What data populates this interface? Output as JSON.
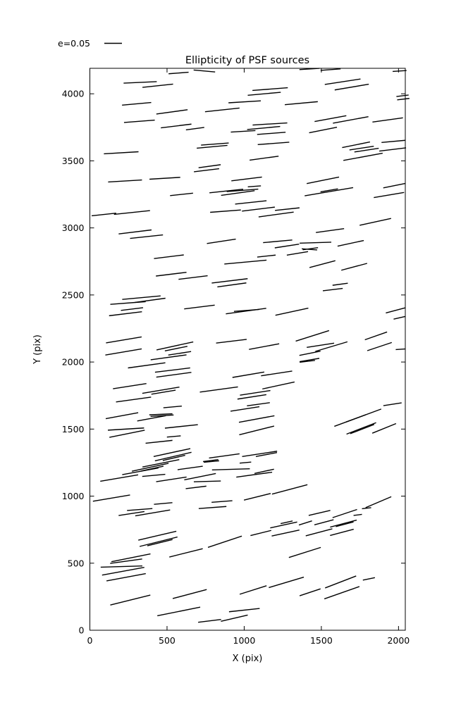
{
  "title": "Ellipticity of PSF sources",
  "legend": {
    "label": "e=0.05"
  },
  "axes": {
    "xlabel": "X (pix)",
    "ylabel": "Y (pix)",
    "xticks": [
      0,
      500,
      1000,
      1500,
      2000
    ],
    "yticks": [
      0,
      500,
      1000,
      1500,
      2000,
      2500,
      3000,
      3500,
      4000
    ],
    "xlim": [
      0,
      2044
    ],
    "ylim": [
      0,
      4190
    ]
  },
  "colors": {
    "line": "#000000",
    "background": "#ffffff",
    "axis": "#000000"
  },
  "chart_data": {
    "type": "line_segments",
    "title": "Ellipticity of PSF sources",
    "xlabel": "X (pix)",
    "ylabel": "Y (pix)",
    "xlim": [
      0,
      2044
    ],
    "ylim": [
      0,
      4190
    ],
    "grid": false,
    "legend_position": "upper-left-outside",
    "legend_entry": "e=0.05",
    "segments_format": "[x_center, y_center, length_pix, angle_deg_ccw]",
    "segments": [
      [
        575,
        4155,
        130,
        5
      ],
      [
        326,
        4085,
        215,
        3
      ],
      [
        440,
        4060,
        200,
        7
      ],
      [
        303,
        3925,
        190,
        6
      ],
      [
        532,
        3865,
        205,
        9
      ],
      [
        321,
        3795,
        200,
        5
      ],
      [
        559,
        3760,
        200,
        8
      ],
      [
        203,
        3560,
        225,
        4
      ],
      [
        742,
        4170,
        140,
        -6
      ],
      [
        1168,
        4035,
        230,
        5
      ],
      [
        1130,
        4000,
        215,
        6
      ],
      [
        1003,
        3940,
        210,
        4
      ],
      [
        1370,
        3930,
        215,
        6
      ],
      [
        858,
        3880,
        225,
        7
      ],
      [
        1167,
        3775,
        225,
        4
      ],
      [
        1126,
        3745,
        215,
        6
      ],
      [
        1176,
        3705,
        185,
        5
      ],
      [
        993,
        3720,
        160,
        4
      ],
      [
        682,
        3740,
        120,
        9
      ],
      [
        810,
        3625,
        180,
        5
      ],
      [
        792,
        3605,
        200,
        6
      ],
      [
        1190,
        3630,
        205,
        5
      ],
      [
        1129,
        3520,
        190,
        9
      ],
      [
        776,
        3460,
        145,
        9
      ],
      [
        756,
        3430,
        165,
        8
      ],
      [
        1016,
        3365,
        200,
        8
      ],
      [
        1423,
        4185,
        130,
        4
      ],
      [
        1560,
        4180,
        130,
        5
      ],
      [
        2007,
        4170,
        90,
        4
      ],
      [
        1638,
        4090,
        235,
        10
      ],
      [
        1697,
        4050,
        225,
        11
      ],
      [
        2026,
        3985,
        80,
        8
      ],
      [
        2031,
        3960,
        80,
        8
      ],
      [
        1559,
        3815,
        210,
        12
      ],
      [
        1690,
        3805,
        235,
        12
      ],
      [
        1930,
        3805,
        200,
        9
      ],
      [
        1511,
        3730,
        185,
        13
      ],
      [
        1967,
        3645,
        155,
        6
      ],
      [
        1725,
        3620,
        185,
        13
      ],
      [
        1761,
        3595,
        160,
        10
      ],
      [
        1793,
        3580,
        160,
        10
      ],
      [
        1770,
        3530,
        260,
        12
      ],
      [
        1962,
        3585,
        175,
        8
      ],
      [
        228,
        3350,
        220,
        4
      ],
      [
        486,
        3370,
        200,
        4
      ],
      [
        594,
        3250,
        150,
        7
      ],
      [
        91,
        3100,
        160,
        7
      ],
      [
        273,
        3115,
        235,
        7
      ],
      [
        293,
        2970,
        215,
        8
      ],
      [
        367,
        2935,
        215,
        7
      ],
      [
        512,
        2785,
        195,
        8
      ],
      [
        527,
        2655,
        200,
        8
      ],
      [
        669,
        2630,
        190,
        8
      ],
      [
        884,
        3275,
        220,
        7
      ],
      [
        959,
        3260,
        220,
        9
      ],
      [
        989,
        3280,
        205,
        5
      ],
      [
        1066,
        3310,
        85,
        5
      ],
      [
        1043,
        3190,
        205,
        7
      ],
      [
        879,
        3125,
        200,
        5
      ],
      [
        1092,
        3140,
        215,
        8
      ],
      [
        1207,
        3100,
        230,
        9
      ],
      [
        1279,
        3140,
        160,
        7
      ],
      [
        852,
        2900,
        190,
        10
      ],
      [
        1217,
        2900,
        190,
        6
      ],
      [
        1277,
        2865,
        160,
        10
      ],
      [
        1144,
        2790,
        120,
        7
      ],
      [
        1345,
        2810,
        140,
        11
      ],
      [
        1008,
        2745,
        275,
        6
      ],
      [
        906,
        2605,
        235,
        8
      ],
      [
        920,
        2575,
        190,
        9
      ],
      [
        1510,
        3355,
        215,
        13
      ],
      [
        1549,
        3270,
        320,
        11
      ],
      [
        1551,
        3280,
        115,
        11
      ],
      [
        1972,
        3315,
        145,
        13
      ],
      [
        1938,
        3245,
        200,
        11
      ],
      [
        1850,
        3045,
        210,
        14
      ],
      [
        1556,
        2980,
        185,
        9
      ],
      [
        1462,
        2890,
        205,
        2
      ],
      [
        1429,
        2845,
        100,
        9
      ],
      [
        1423,
        2840,
        100,
        -5
      ],
      [
        1690,
        2885,
        175,
        14
      ],
      [
        1507,
        2730,
        175,
        17
      ],
      [
        1713,
        2710,
        175,
        17
      ],
      [
        1622,
        2580,
        100,
        9
      ],
      [
        1574,
        2540,
        130,
        8
      ],
      [
        334,
        2480,
        250,
        6
      ],
      [
        247,
        2440,
        230,
        5
      ],
      [
        391,
        2460,
        200,
        9
      ],
      [
        273,
        2395,
        145,
        8
      ],
      [
        231,
        2360,
        215,
        8
      ],
      [
        220,
        2165,
        235,
        11
      ],
      [
        218,
        2075,
        240,
        11
      ],
      [
        551,
        2120,
        245,
        14
      ],
      [
        559,
        2100,
        150,
        13
      ],
      [
        510,
        2035,
        235,
        9
      ],
      [
        582,
        2065,
        150,
        10
      ],
      [
        368,
        1975,
        245,
        9
      ],
      [
        536,
        1940,
        230,
        8
      ],
      [
        544,
        1905,
        230,
        9
      ],
      [
        258,
        1820,
        220,
        10
      ],
      [
        460,
        1790,
        245,
        11
      ],
      [
        477,
        1775,
        160,
        11
      ],
      [
        283,
        1720,
        230,
        9
      ],
      [
        710,
        2410,
        200,
        8
      ],
      [
        1012,
        2380,
        265,
        9
      ],
      [
        1016,
        2385,
        165,
        5
      ],
      [
        1309,
        2375,
        220,
        14
      ],
      [
        917,
        2155,
        200,
        8
      ],
      [
        1129,
        2115,
        200,
        12
      ],
      [
        1027,
        1905,
        210,
        11
      ],
      [
        1210,
        1915,
        205,
        10
      ],
      [
        836,
        1795,
        250,
        9
      ],
      [
        1071,
        1770,
        200,
        10
      ],
      [
        1222,
        1825,
        215,
        14
      ],
      [
        1050,
        1740,
        190,
        10
      ],
      [
        1092,
        1685,
        150,
        9
      ],
      [
        1980,
        2385,
        130,
        17
      ],
      [
        2007,
        2330,
        80,
        15
      ],
      [
        1442,
        2195,
        230,
        20
      ],
      [
        1494,
        2125,
        180,
        10
      ],
      [
        1565,
        2115,
        220,
        19
      ],
      [
        1426,
        2065,
        140,
        13
      ],
      [
        1423,
        2015,
        130,
        11
      ],
      [
        1409,
        2005,
        100,
        8
      ],
      [
        1854,
        2195,
        155,
        22
      ],
      [
        1877,
        2115,
        170,
        21
      ],
      [
        2012,
        2095,
        60,
        4
      ],
      [
        1961,
        1685,
        120,
        10
      ],
      [
        208,
        1600,
        215,
        12
      ],
      [
        536,
        1665,
        120,
        6
      ],
      [
        460,
        1610,
        150,
        3
      ],
      [
        468,
        1600,
        150,
        4
      ],
      [
        400,
        1580,
        190,
        12
      ],
      [
        234,
        1500,
        235,
        4
      ],
      [
        241,
        1465,
        235,
        13
      ],
      [
        593,
        1520,
        215,
        7
      ],
      [
        544,
        1445,
        90,
        6
      ],
      [
        448,
        1405,
        175,
        7
      ],
      [
        532,
        1325,
        245,
        14
      ],
      [
        540,
        1295,
        245,
        15
      ],
      [
        545,
        1285,
        150,
        15
      ],
      [
        460,
        1245,
        245,
        13
      ],
      [
        391,
        1215,
        245,
        14
      ],
      [
        404,
        1205,
        150,
        14
      ],
      [
        327,
        1185,
        240,
        12
      ],
      [
        190,
        1135,
        250,
        11
      ],
      [
        414,
        1155,
        150,
        6
      ],
      [
        528,
        1125,
        200,
        10
      ],
      [
        650,
        1210,
        165,
        9
      ],
      [
        140,
        985,
        245,
        11
      ],
      [
        323,
        900,
        165,
        5
      ],
      [
        270,
        870,
        170,
        10
      ],
      [
        407,
        875,
        230,
        11
      ],
      [
        475,
        945,
        120,
        6
      ],
      [
        1005,
        1650,
        190,
        10
      ],
      [
        1081,
        1575,
        235,
        12
      ],
      [
        1081,
        1490,
        235,
        16
      ],
      [
        871,
        1300,
        200,
        9
      ],
      [
        1100,
        1315,
        230,
        10
      ],
      [
        1144,
        1310,
        140,
        12
      ],
      [
        783,
        1265,
        100,
        8
      ],
      [
        788,
        1258,
        100,
        6
      ],
      [
        1008,
        1250,
        75,
        6
      ],
      [
        914,
        1200,
        245,
        2
      ],
      [
        714,
        1145,
        210,
        13
      ],
      [
        1065,
        1160,
        235,
        9
      ],
      [
        1130,
        1185,
        130,
        14
      ],
      [
        761,
        1110,
        175,
        2
      ],
      [
        688,
        1065,
        135,
        8
      ],
      [
        1295,
        1050,
        240,
        17
      ],
      [
        1085,
        995,
        180,
        16
      ],
      [
        856,
        960,
        135,
        5
      ],
      [
        795,
        915,
        180,
        5
      ],
      [
        1736,
        1585,
        330,
        23
      ],
      [
        1724,
        1580,
        140,
        23
      ],
      [
        1759,
        1505,
        210,
        24
      ],
      [
        1765,
        1500,
        170,
        24
      ],
      [
        1907,
        1505,
        170,
        25
      ],
      [
        1870,
        955,
        185,
        26
      ],
      [
        1652,
        870,
        170,
        21
      ],
      [
        1793,
        910,
        60,
        8
      ],
      [
        1488,
        875,
        145,
        15
      ],
      [
        1736,
        860,
        55,
        8
      ],
      [
        437,
        705,
        255,
        15
      ],
      [
        445,
        660,
        255,
        16
      ],
      [
        454,
        653,
        170,
        16
      ],
      [
        266,
        540,
        260,
        13
      ],
      [
        235,
        515,
        210,
        9
      ],
      [
        205,
        475,
        270,
        2
      ],
      [
        216,
        440,
        280,
        12
      ],
      [
        235,
        395,
        260,
        12
      ],
      [
        623,
        577,
        225,
        16
      ],
      [
        262,
        225,
        270,
        16
      ],
      [
        647,
        270,
        230,
        17
      ],
      [
        576,
        140,
        285,
        13
      ],
      [
        1256,
        785,
        180,
        14
      ],
      [
        1275,
        805,
        80,
        14
      ],
      [
        1108,
        725,
        140,
        16
      ],
      [
        1268,
        725,
        185,
        14
      ],
      [
        875,
        660,
        235,
        21
      ],
      [
        1273,
        357,
        240,
        19
      ],
      [
        1058,
        300,
        185,
        20
      ],
      [
        1393,
        580,
        220,
        20
      ],
      [
        1001,
        150,
        200,
        7
      ],
      [
        936,
        90,
        180,
        15
      ],
      [
        776,
        70,
        150,
        8
      ],
      [
        1397,
        800,
        90,
        20
      ],
      [
        1517,
        805,
        130,
        17
      ],
      [
        1643,
        795,
        180,
        17
      ],
      [
        1651,
        790,
        120,
        17
      ],
      [
        1485,
        730,
        180,
        17
      ],
      [
        1633,
        730,
        160,
        17
      ],
      [
        1625,
        360,
        220,
        24
      ],
      [
        1808,
        383,
        80,
        13
      ],
      [
        1633,
        280,
        245,
        22
      ],
      [
        1427,
        283,
        145,
        21
      ]
    ]
  }
}
